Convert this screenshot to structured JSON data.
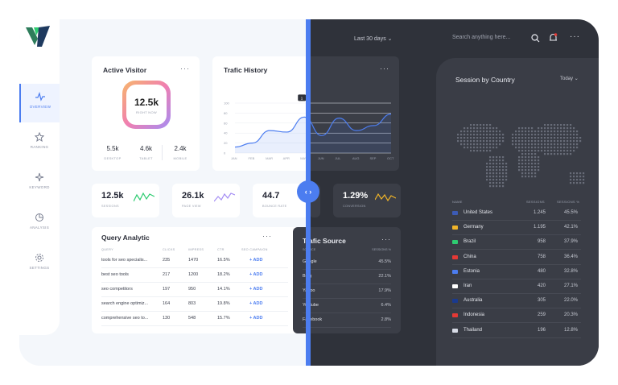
{
  "header": {
    "range_label": "Last 30 days",
    "search_placeholder": "Search anything here..."
  },
  "sidebar": {
    "items": [
      {
        "label": "OVERVIEW",
        "icon": "pulse-icon",
        "active": true
      },
      {
        "label": "RANKING",
        "icon": "star-icon",
        "active": false
      },
      {
        "label": "KEYWORD",
        "icon": "sparkle-icon",
        "active": false
      },
      {
        "label": "ANALYSIS",
        "icon": "pie-chart-icon",
        "active": false
      },
      {
        "label": "SETTINGS",
        "icon": "gear-icon",
        "active": false
      }
    ]
  },
  "active_visitor": {
    "title": "Active Visitor",
    "value": "12.5k",
    "sub": "RIGHT NOW",
    "stats": [
      {
        "value": "5.5k",
        "label": "DESKTOP"
      },
      {
        "value": "4.6k",
        "label": "TABLET"
      },
      {
        "value": "2.4k",
        "label": "MOBILE"
      }
    ]
  },
  "traffic_history": {
    "title": "Trafic History",
    "tooltip": "1"
  },
  "chart_data": {
    "type": "line",
    "title": "Trafic History",
    "categories": [
      "JAN",
      "FEB",
      "MAR",
      "APR",
      "MAY",
      "JUN",
      "JUL",
      "AUG",
      "SEP",
      "OCT"
    ],
    "ylim": [
      0,
      100
    ],
    "yticks": [
      0,
      20,
      40,
      60,
      80,
      100
    ],
    "series": [
      {
        "values": [
          12,
          20,
          45,
          42,
          72,
          35,
          70,
          45,
          55,
          78
        ]
      }
    ],
    "grid": true,
    "legend": "none"
  },
  "stats": [
    {
      "value": "12.5k",
      "label": "SESSIONS",
      "color": "#2ecc71"
    },
    {
      "value": "26.1k",
      "label": "PAGE VIEW",
      "color": "#a48df4"
    },
    {
      "value": "44.7",
      "label": "BOUNCE RATE",
      "color": "#4c7df0"
    },
    {
      "value": "1.29%",
      "label": "CONVERSION",
      "color": "#f0b429"
    }
  ],
  "query": {
    "title": "Query Analytic",
    "headers": [
      "QUERY",
      "CLICKS",
      "IMPRESS",
      "CTR",
      "SEO CAMPAIGN"
    ],
    "rows": [
      {
        "q": "tools for seo specialis...",
        "clicks": "235",
        "impress": "1470",
        "ctr": "16.5%",
        "action": "+ ADD"
      },
      {
        "q": "best seo tools",
        "clicks": "217",
        "impress": "1200",
        "ctr": "18.2%",
        "action": "+ ADD"
      },
      {
        "q": "seo competitors",
        "clicks": "197",
        "impress": "950",
        "ctr": "14.1%",
        "action": "+ ADD"
      },
      {
        "q": "search engine optimiz...",
        "clicks": "164",
        "impress": "803",
        "ctr": "19.8%",
        "action": "+ ADD"
      },
      {
        "q": "comprehensive seo to...",
        "clicks": "130",
        "impress": "548",
        "ctr": "15.7%",
        "action": "+ ADD"
      }
    ]
  },
  "traffic_source": {
    "title": "Trafic Source",
    "headers": [
      "SOURCE",
      "SESSIONS %"
    ],
    "rows": [
      {
        "name": "Google",
        "value": "45.5%"
      },
      {
        "name": "Bing",
        "value": "22.1%"
      },
      {
        "name": "Yahoo",
        "value": "17.9%"
      },
      {
        "name": "Youtube",
        "value": "6.4%"
      },
      {
        "name": "Facebook",
        "value": "2.8%"
      }
    ]
  },
  "session_country": {
    "title": "Session by Country",
    "range": "Today",
    "headers": [
      "NAME",
      "SESSIONS",
      "SESSIONS %"
    ],
    "rows": [
      {
        "name": "United States",
        "sessions": "1.245",
        "pct": "45.5%",
        "flag": "#3c5bb5"
      },
      {
        "name": "Germany",
        "sessions": "1.195",
        "pct": "42.1%",
        "flag": "#f0b429"
      },
      {
        "name": "Brazil",
        "sessions": "958",
        "pct": "37.9%",
        "flag": "#2ecc71"
      },
      {
        "name": "China",
        "sessions": "758",
        "pct": "36.4%",
        "flag": "#e53935"
      },
      {
        "name": "Estonia",
        "sessions": "480",
        "pct": "32.8%",
        "flag": "#4c7df0"
      },
      {
        "name": "Iran",
        "sessions": "420",
        "pct": "27.1%",
        "flag": "#ffffff"
      },
      {
        "name": "Australia",
        "sessions": "305",
        "pct": "22.0%",
        "flag": "#1a3a8f"
      },
      {
        "name": "Indonesia",
        "sessions": "259",
        "pct": "20.3%",
        "flag": "#e53935"
      },
      {
        "name": "Thailand",
        "sessions": "196",
        "pct": "12.8%",
        "flag": "#d7dbe6"
      }
    ]
  }
}
